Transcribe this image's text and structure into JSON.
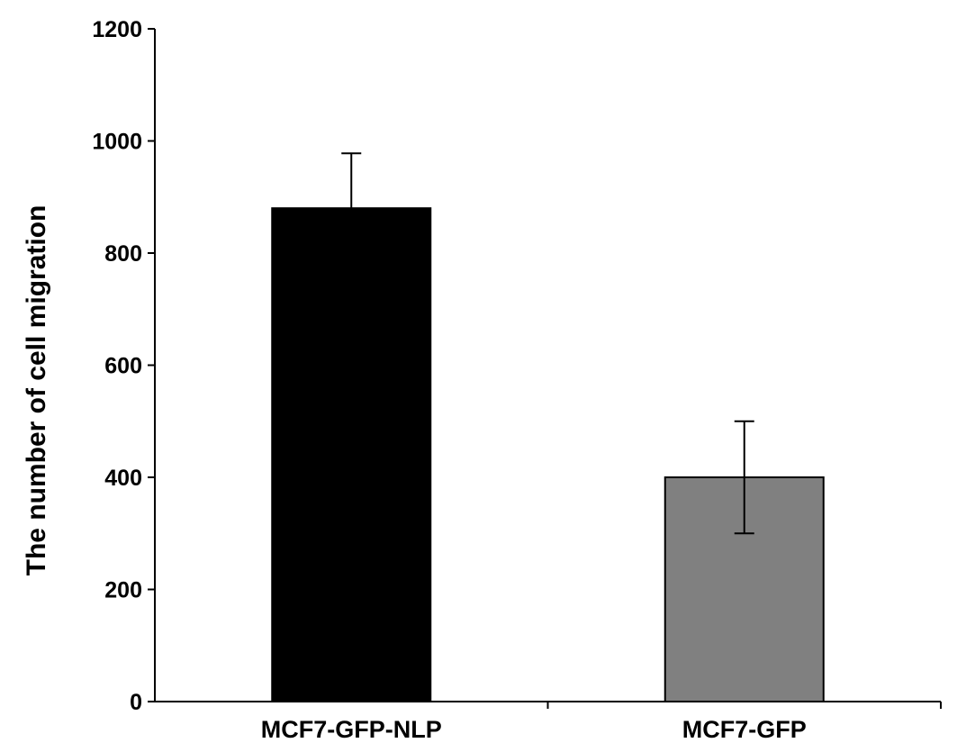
{
  "chart_data": {
    "type": "bar",
    "title": "",
    "xlabel": "",
    "ylabel": "The number of cell migration",
    "categories": [
      "MCF7-GFP-NLP",
      "MCF7-GFP"
    ],
    "values": [
      880,
      400
    ],
    "errors": [
      98,
      100
    ],
    "bar_colors": [
      "#000000",
      "#808080"
    ],
    "ylim": [
      0,
      1200
    ],
    "yticks": [
      0,
      200,
      400,
      600,
      800,
      1000,
      1200
    ],
    "grid": false,
    "legend": "none"
  }
}
